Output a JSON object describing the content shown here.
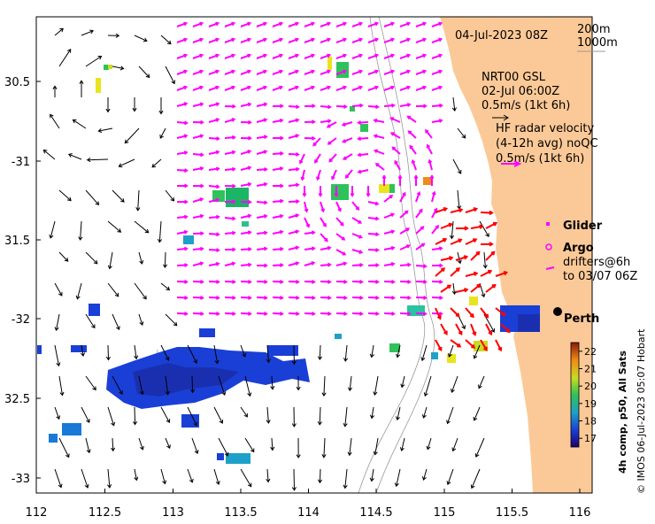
{
  "map": {
    "title_date": "04-Jul-2023 08Z",
    "contours": [
      "200m",
      "1000m"
    ],
    "current_source": [
      "NRT00 GSL",
      "02-Jul 06:00Z",
      "0.5m/s (1kt 6h)"
    ],
    "radar_info": [
      "HF radar velocity",
      "(4-12h avg) noQC",
      "0.5m/s (1kt 6h)"
    ],
    "legend": {
      "glider": "Glider",
      "argo": "Argo",
      "drifters": [
        "drifters@6h",
        "to 03/07 06Z"
      ]
    },
    "city": "Perth",
    "credit": "© IMOS 06-Jul-2023 05:07 Hobart",
    "colorbar_label": "4h comp, p50, All Sats",
    "colorbar_ticks": [
      "22",
      "21",
      "20",
      "19",
      "18",
      "17"
    ],
    "colorbar_range": [
      16.5,
      22.5
    ],
    "lon_ticks": [
      "112",
      "112.5",
      "113",
      "113.5",
      "114",
      "114.5",
      "115",
      "115.5",
      "116"
    ],
    "lat_ticks": [
      "30.5",
      "-31",
      "31.5",
      "-32",
      "32.5",
      "-33"
    ],
    "colors": {
      "land": "#fbc997",
      "radar_magenta": "#ff00ff",
      "hf_red": "#ff0000",
      "arrows": "#000000"
    }
  }
}
